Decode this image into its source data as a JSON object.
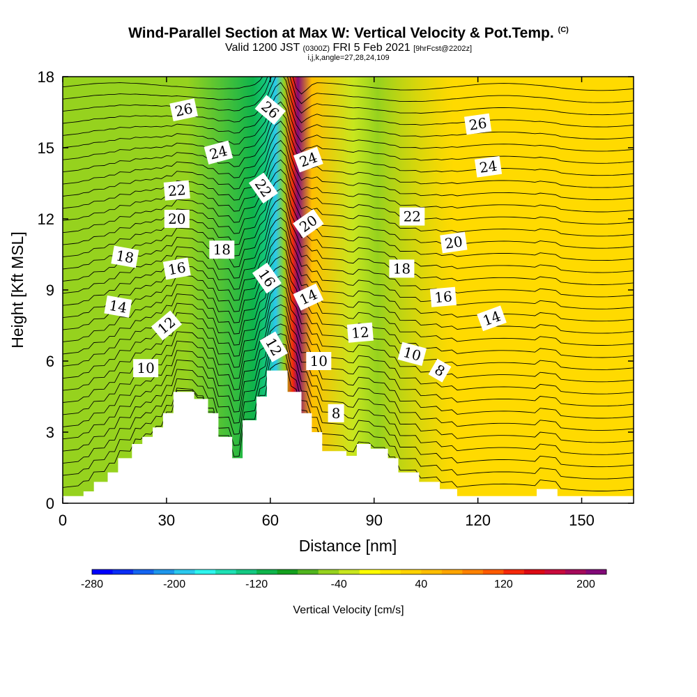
{
  "title": {
    "main": "Wind-Parallel Section at Max W: Vertical Velocity & Pot.Temp.",
    "copyright": "(C)",
    "valid_prefix": "Valid 1200 JST",
    "valid_utc": "(0300Z)",
    "valid_date": "FRI 5 Feb 2021",
    "forecast": "[9hrFcst@2202z]",
    "grid": "i,j,k,angle=27,28,24,109"
  },
  "chart_data": {
    "type": "contour",
    "xlabel": "Distance [nm]",
    "ylabel": "Height [Kft MSL]",
    "xlim": [
      0,
      165
    ],
    "ylim": [
      0,
      18
    ],
    "x_ticks": [
      "0",
      "30",
      "60",
      "90",
      "120",
      "150"
    ],
    "y_ticks": [
      "0",
      "3",
      "6",
      "9",
      "12",
      "15",
      "18"
    ],
    "terrain_kft": [
      {
        "x": 0,
        "h": 0.3
      },
      {
        "x": 6,
        "h": 0.5
      },
      {
        "x": 9,
        "h": 0.9
      },
      {
        "x": 13,
        "h": 1.3
      },
      {
        "x": 16,
        "h": 1.9
      },
      {
        "x": 20,
        "h": 2.5
      },
      {
        "x": 23,
        "h": 2.8
      },
      {
        "x": 26,
        "h": 3.2
      },
      {
        "x": 29,
        "h": 3.8
      },
      {
        "x": 32,
        "h": 4.7
      },
      {
        "x": 38,
        "h": 4.4
      },
      {
        "x": 42,
        "h": 3.8
      },
      {
        "x": 45,
        "h": 2.8
      },
      {
        "x": 49,
        "h": 1.9
      },
      {
        "x": 52,
        "h": 3.5
      },
      {
        "x": 56,
        "h": 4.5
      },
      {
        "x": 59,
        "h": 5.6
      },
      {
        "x": 65,
        "h": 4.7
      },
      {
        "x": 69,
        "h": 3.8
      },
      {
        "x": 72,
        "h": 3.0
      },
      {
        "x": 75,
        "h": 2.2
      },
      {
        "x": 82,
        "h": 2.0
      },
      {
        "x": 85,
        "h": 2.5
      },
      {
        "x": 89,
        "h": 2.3
      },
      {
        "x": 94,
        "h": 1.9
      },
      {
        "x": 97,
        "h": 1.3
      },
      {
        "x": 103,
        "h": 0.9
      },
      {
        "x": 109,
        "h": 0.6
      },
      {
        "x": 114,
        "h": 0.3
      },
      {
        "x": 137,
        "h": 0.6
      },
      {
        "x": 143,
        "h": 0.3
      },
      {
        "x": 165,
        "h": 0.3
      }
    ],
    "vertical_velocity_bands": [
      {
        "x": 36,
        "vv": -60
      },
      {
        "x": 55,
        "vv": -110
      },
      {
        "x": 59,
        "vv": -140
      },
      {
        "x": 61.5,
        "vv": -200
      },
      {
        "x": 64,
        "vv": -60
      },
      {
        "x": 66.5,
        "vv": 120
      },
      {
        "x": 68,
        "vv": 200
      },
      {
        "x": 72,
        "vv": 40
      },
      {
        "x": 84,
        "vv": -40
      },
      {
        "x": 91,
        "vv": -60
      },
      {
        "x": 113,
        "vv": 20
      }
    ],
    "theta_contours": [
      {
        "value": "26",
        "label_x": 35,
        "label_y": 16.6,
        "angle": -12
      },
      {
        "value": "26",
        "label_x": 60,
        "label_y": 16.6,
        "angle": 40
      },
      {
        "value": "26",
        "label_x": 120,
        "label_y": 16.0,
        "angle": -8
      },
      {
        "value": "24",
        "label_x": 45,
        "label_y": 14.8,
        "angle": -15
      },
      {
        "value": "24",
        "label_x": 71,
        "label_y": 14.5,
        "angle": -20
      },
      {
        "value": "24",
        "label_x": 123,
        "label_y": 14.2,
        "angle": -8
      },
      {
        "value": "22",
        "label_x": 33,
        "label_y": 13.2,
        "angle": -5
      },
      {
        "value": "22",
        "label_x": 58,
        "label_y": 13.3,
        "angle": 55
      },
      {
        "value": "22",
        "label_x": 101,
        "label_y": 12.1,
        "angle": 0
      },
      {
        "value": "20",
        "label_x": 33,
        "label_y": 12.0,
        "angle": 0
      },
      {
        "value": "20",
        "label_x": 71,
        "label_y": 11.8,
        "angle": -35
      },
      {
        "value": "20",
        "label_x": 113,
        "label_y": 11.0,
        "angle": -8
      },
      {
        "value": "18",
        "label_x": 18,
        "label_y": 10.4,
        "angle": 10
      },
      {
        "value": "18",
        "label_x": 46,
        "label_y": 10.7,
        "angle": 0
      },
      {
        "value": "18",
        "label_x": 98,
        "label_y": 9.9,
        "angle": 0
      },
      {
        "value": "16",
        "label_x": 33,
        "label_y": 9.9,
        "angle": -10
      },
      {
        "value": "16",
        "label_x": 59,
        "label_y": 9.5,
        "angle": 55
      },
      {
        "value": "16",
        "label_x": 110,
        "label_y": 8.7,
        "angle": -5
      },
      {
        "value": "14",
        "label_x": 16,
        "label_y": 8.3,
        "angle": 10
      },
      {
        "value": "14",
        "label_x": 71,
        "label_y": 8.7,
        "angle": -25
      },
      {
        "value": "14",
        "label_x": 124,
        "label_y": 7.8,
        "angle": -20
      },
      {
        "value": "12",
        "label_x": 30,
        "label_y": 7.5,
        "angle": -40
      },
      {
        "value": "12",
        "label_x": 61,
        "label_y": 6.6,
        "angle": 60
      },
      {
        "value": "12",
        "label_x": 86,
        "label_y": 7.2,
        "angle": -5
      },
      {
        "value": "10",
        "label_x": 24,
        "label_y": 5.7,
        "angle": 0
      },
      {
        "value": "10",
        "label_x": 74,
        "label_y": 6.0,
        "angle": 0
      },
      {
        "value": "10",
        "label_x": 101,
        "label_y": 6.3,
        "angle": 15
      },
      {
        "value": "8",
        "label_x": 79,
        "label_y": 3.8,
        "angle": 0
      },
      {
        "value": "8",
        "label_x": 109,
        "label_y": 5.6,
        "angle": 30
      }
    ]
  },
  "colorbar": {
    "label": "Vertical Velocity [cm/s]",
    "min": -280,
    "max": 220,
    "step": 20,
    "ticks": [
      "-280",
      "-200",
      "-120",
      "-40",
      "40",
      "120",
      "200"
    ],
    "colors": [
      "#0000ff",
      "#0a2df5",
      "#1464f0",
      "#1e96eb",
      "#2bc8ee",
      "#2ef5ee",
      "#1ee0b4",
      "#14c882",
      "#0fb44b",
      "#14a01e",
      "#50b41e",
      "#96d21e",
      "#c8e61e",
      "#ffff00",
      "#ffe600",
      "#ffd200",
      "#ffbe00",
      "#ffa500",
      "#ff8200",
      "#ff5a00",
      "#f5280a",
      "#dc0a14",
      "#c80a3c",
      "#a50a5a",
      "#820a78"
    ]
  },
  "colors": {
    "background": "#ffe600",
    "terrain": "#ffffff",
    "contour": "#000000"
  }
}
